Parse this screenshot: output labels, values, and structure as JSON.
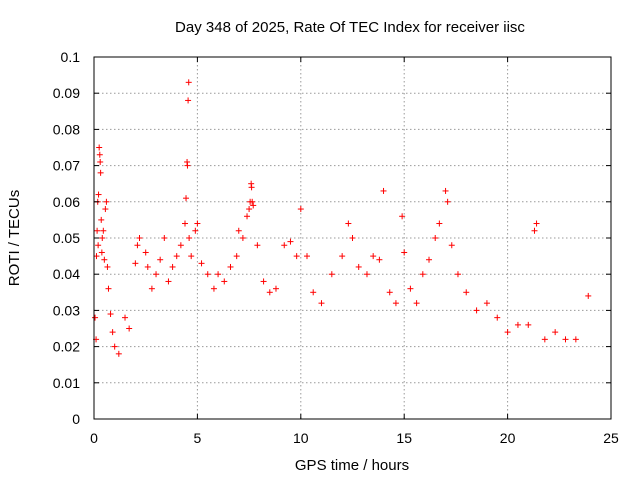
{
  "chart_data": {
    "type": "scatter",
    "title": "Day 348 of 2025, Rate Of TEC Index for receiver iisc",
    "xlabel": "GPS time / hours",
    "ylabel": "ROTI / TECUs",
    "xlim": [
      0,
      25
    ],
    "ylim": [
      0,
      0.1
    ],
    "xticks": [
      0,
      5,
      10,
      15,
      20,
      25
    ],
    "xtick_labels": [
      "0",
      "5",
      "10",
      "15",
      "20",
      "25"
    ],
    "yticks": [
      0,
      0.01,
      0.02,
      0.03,
      0.04,
      0.05,
      0.06,
      0.07,
      0.08,
      0.09,
      0.1
    ],
    "ytick_labels": [
      "0",
      "0.01",
      "0.02",
      "0.03",
      "0.04",
      "0.05",
      "0.06",
      "0.07",
      "0.08",
      "0.09",
      "0.1"
    ],
    "grid": true,
    "marker": "plus",
    "color": "#ff0000",
    "series": [
      {
        "points": [
          [
            0.05,
            0.028
          ],
          [
            0.1,
            0.022
          ],
          [
            0.12,
            0.045
          ],
          [
            0.15,
            0.052
          ],
          [
            0.18,
            0.06
          ],
          [
            0.2,
            0.048
          ],
          [
            0.22,
            0.062
          ],
          [
            0.25,
            0.075
          ],
          [
            0.28,
            0.073
          ],
          [
            0.3,
            0.071
          ],
          [
            0.32,
            0.068
          ],
          [
            0.35,
            0.055
          ],
          [
            0.38,
            0.046
          ],
          [
            0.4,
            0.05
          ],
          [
            0.45,
            0.052
          ],
          [
            0.5,
            0.044
          ],
          [
            0.55,
            0.058
          ],
          [
            0.6,
            0.06
          ],
          [
            0.65,
            0.042
          ],
          [
            0.7,
            0.036
          ],
          [
            0.8,
            0.029
          ],
          [
            0.9,
            0.024
          ],
          [
            1.0,
            0.02
          ],
          [
            1.2,
            0.018
          ],
          [
            1.5,
            0.028
          ],
          [
            1.7,
            0.025
          ],
          [
            2.0,
            0.043
          ],
          [
            2.1,
            0.048
          ],
          [
            2.2,
            0.05
          ],
          [
            2.5,
            0.046
          ],
          [
            2.6,
            0.042
          ],
          [
            2.8,
            0.036
          ],
          [
            3.0,
            0.04
          ],
          [
            3.2,
            0.044
          ],
          [
            3.4,
            0.05
          ],
          [
            3.6,
            0.038
          ],
          [
            3.8,
            0.042
          ],
          [
            4.0,
            0.045
          ],
          [
            4.2,
            0.048
          ],
          [
            4.4,
            0.054
          ],
          [
            4.45,
            0.061
          ],
          [
            4.5,
            0.071
          ],
          [
            4.52,
            0.07
          ],
          [
            4.55,
            0.088
          ],
          [
            4.58,
            0.093
          ],
          [
            4.6,
            0.05
          ],
          [
            4.7,
            0.045
          ],
          [
            4.9,
            0.052
          ],
          [
            5.0,
            0.054
          ],
          [
            5.2,
            0.043
          ],
          [
            5.5,
            0.04
          ],
          [
            5.8,
            0.036
          ],
          [
            6.0,
            0.04
          ],
          [
            6.3,
            0.038
          ],
          [
            6.6,
            0.042
          ],
          [
            6.9,
            0.045
          ],
          [
            7.0,
            0.052
          ],
          [
            7.2,
            0.05
          ],
          [
            7.4,
            0.056
          ],
          [
            7.5,
            0.058
          ],
          [
            7.55,
            0.06
          ],
          [
            7.6,
            0.065
          ],
          [
            7.62,
            0.064
          ],
          [
            7.65,
            0.06
          ],
          [
            7.7,
            0.059
          ],
          [
            7.9,
            0.048
          ],
          [
            8.2,
            0.038
          ],
          [
            8.5,
            0.035
          ],
          [
            8.8,
            0.036
          ],
          [
            9.2,
            0.048
          ],
          [
            9.5,
            0.049
          ],
          [
            9.8,
            0.045
          ],
          [
            10.0,
            0.058
          ],
          [
            10.3,
            0.045
          ],
          [
            10.6,
            0.035
          ],
          [
            11.0,
            0.032
          ],
          [
            11.5,
            0.04
          ],
          [
            12.0,
            0.045
          ],
          [
            12.3,
            0.054
          ],
          [
            12.5,
            0.05
          ],
          [
            12.8,
            0.042
          ],
          [
            13.2,
            0.04
          ],
          [
            13.5,
            0.045
          ],
          [
            13.8,
            0.044
          ],
          [
            14.0,
            0.063
          ],
          [
            14.3,
            0.035
          ],
          [
            14.6,
            0.032
          ],
          [
            14.9,
            0.056
          ],
          [
            15.0,
            0.046
          ],
          [
            15.3,
            0.036
          ],
          [
            15.6,
            0.032
          ],
          [
            15.9,
            0.04
          ],
          [
            16.2,
            0.044
          ],
          [
            16.5,
            0.05
          ],
          [
            16.7,
            0.054
          ],
          [
            17.0,
            0.063
          ],
          [
            17.1,
            0.06
          ],
          [
            17.3,
            0.048
          ],
          [
            17.6,
            0.04
          ],
          [
            18.0,
            0.035
          ],
          [
            18.5,
            0.03
          ],
          [
            19.0,
            0.032
          ],
          [
            19.5,
            0.028
          ],
          [
            20.0,
            0.024
          ],
          [
            20.5,
            0.026
          ],
          [
            21.0,
            0.026
          ],
          [
            21.3,
            0.052
          ],
          [
            21.4,
            0.054
          ],
          [
            21.8,
            0.022
          ],
          [
            22.3,
            0.024
          ],
          [
            22.8,
            0.022
          ],
          [
            23.3,
            0.022
          ],
          [
            23.9,
            0.034
          ]
        ]
      }
    ]
  }
}
